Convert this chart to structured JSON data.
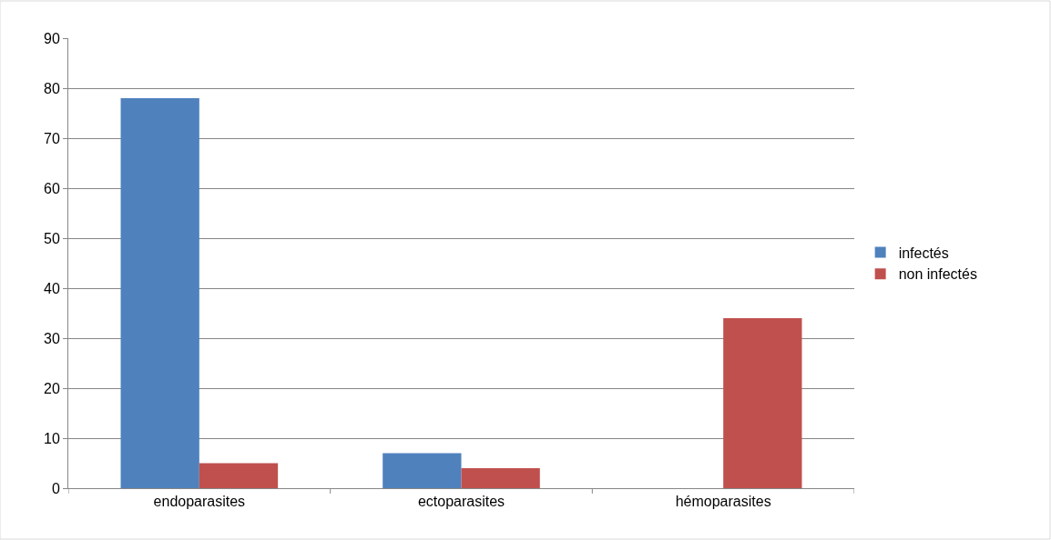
{
  "chart_data": {
    "type": "bar",
    "categories": [
      "endoparasites",
      "ectoparasites",
      "hémoparasites"
    ],
    "series": [
      {
        "name": "infectés",
        "color": "#4f81bd",
        "values": [
          78,
          7,
          0
        ]
      },
      {
        "name": "non infectés",
        "color": "#c0504d",
        "values": [
          5,
          4,
          34
        ]
      }
    ],
    "ylim": [
      0,
      90
    ],
    "yticks": [
      0,
      10,
      20,
      30,
      40,
      50,
      60,
      70,
      80,
      90
    ],
    "grid": "y",
    "legend": "right"
  }
}
